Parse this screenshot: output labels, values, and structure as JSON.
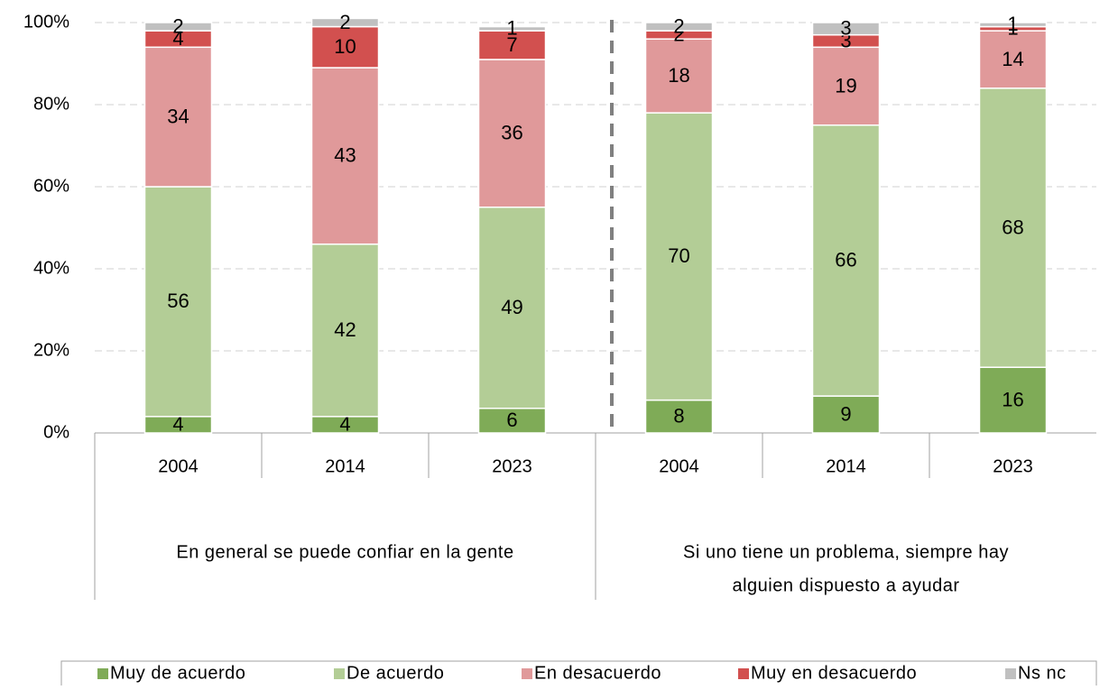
{
  "chart_data": {
    "type": "stacked-bar",
    "groups": [
      {
        "label": [
          "En general se puede confiar en la gente"
        ],
        "categories": [
          "2004",
          "2014",
          "2023"
        ]
      },
      {
        "label": [
          "Si uno tiene un problema, siempre hay",
          "alguien dispuesto a ayudar"
        ],
        "categories": [
          "2004",
          "2014",
          "2023"
        ]
      }
    ],
    "series": [
      {
        "name": "Muy de acuerdo",
        "color": "#7fab57",
        "values": [
          4,
          4,
          6,
          8,
          9,
          16
        ]
      },
      {
        "name": "De acuerdo",
        "color": "#b3cd96",
        "values": [
          56,
          42,
          49,
          70,
          66,
          68
        ]
      },
      {
        "name": "En desacuerdo",
        "color": "#e0999a",
        "values": [
          34,
          43,
          36,
          18,
          19,
          14
        ]
      },
      {
        "name": "Muy en desacuerdo",
        "color": "#d2504f",
        "values": [
          4,
          10,
          7,
          2,
          3,
          1
        ]
      },
      {
        "name": "Ns nc",
        "color": "#c0c0c0",
        "values": [
          2,
          2,
          1,
          2,
          3,
          1
        ]
      }
    ],
    "ylim": [
      0,
      100
    ],
    "yticks": [
      {
        "value": 0,
        "label": "0%"
      },
      {
        "value": 20,
        "label": "20%"
      },
      {
        "value": 40,
        "label": "40%"
      },
      {
        "value": 60,
        "label": "60%"
      },
      {
        "value": 80,
        "label": "80%"
      },
      {
        "value": 100,
        "label": "100%"
      }
    ],
    "grid": true,
    "legend": "bottom"
  }
}
